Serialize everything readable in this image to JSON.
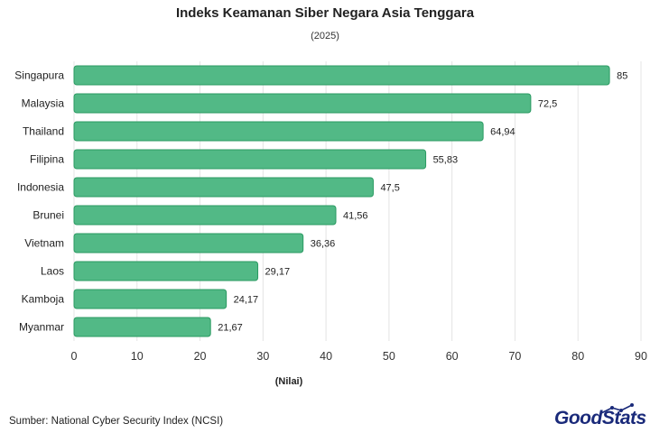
{
  "header": {
    "title": "Indeks Keamanan Siber Negara Asia Tenggara",
    "subtitle": "(2025)"
  },
  "footer": {
    "source": "Sumber: National Cyber Security Index (NCSI)",
    "logo": "GoodStats"
  },
  "colors": {
    "bar_fill": "#52b986",
    "bar_stroke": "#2a9a62",
    "grid": "#e4e4e4",
    "logo": "#1a2a7a"
  },
  "chart_data": {
    "type": "bar",
    "orientation": "horizontal",
    "title": "Indeks Keamanan Siber Negara Asia Tenggara",
    "subtitle": "(2025)",
    "xlabel": "(Nilai)",
    "ylabel": "",
    "categories": [
      "Singapura",
      "Malaysia",
      "Thailand",
      "Filipina",
      "Indonesia",
      "Brunei",
      "Vietnam",
      "Laos",
      "Kamboja",
      "Myanmar"
    ],
    "values": [
      85,
      72.5,
      64.94,
      55.83,
      47.5,
      41.56,
      36.36,
      29.17,
      24.17,
      21.67
    ],
    "value_labels": [
      "85",
      "72,5",
      "64,94",
      "55,83",
      "47,5",
      "41,56",
      "36,36",
      "29,17",
      "24,17",
      "21,67"
    ],
    "xlim": [
      0,
      90
    ],
    "xticks": [
      0,
      10,
      20,
      30,
      40,
      50,
      60,
      70,
      80,
      90
    ],
    "grid": true,
    "legend": "none"
  }
}
